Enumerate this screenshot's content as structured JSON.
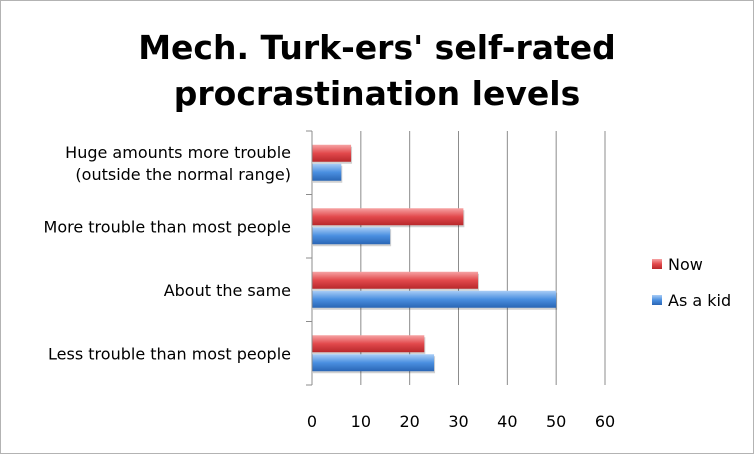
{
  "chart_data": {
    "type": "bar",
    "orientation": "horizontal",
    "title": "Mech. Turk-ers' self-rated procrastination levels",
    "title_lines": [
      "Mech. Turk-ers' self-rated",
      "procrastination levels"
    ],
    "categories": [
      "Huge amounts more trouble (outside the normal range)",
      "More trouble than most people",
      "About the same",
      "Less trouble than most people"
    ],
    "category_lines": [
      [
        "Huge amounts more trouble",
        "(outside the normal range)"
      ],
      [
        "More trouble than most people"
      ],
      [
        "About the same"
      ],
      [
        "Less trouble than most people"
      ]
    ],
    "series": [
      {
        "name": "Now",
        "color": "#e2494c",
        "values": [
          8,
          31,
          34,
          23
        ]
      },
      {
        "name": "As a kid",
        "color": "#4a8fe0",
        "values": [
          6,
          16,
          50,
          25
        ]
      }
    ],
    "xlim": [
      0,
      60
    ],
    "xticks": [
      0,
      10,
      20,
      30,
      40,
      50,
      60
    ],
    "xlabel": "",
    "ylabel": "",
    "gridlines": true,
    "legend_position": "right"
  }
}
